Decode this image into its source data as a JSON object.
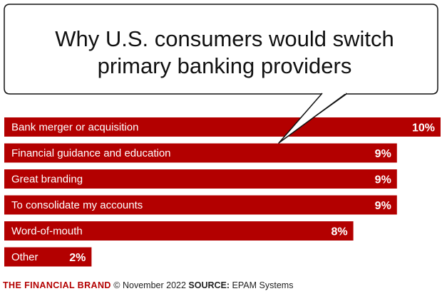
{
  "chart_data": {
    "type": "bar",
    "orientation": "horizontal",
    "title_lines": [
      "Why U.S. consumers would switch",
      "primary banking providers"
    ],
    "categories": [
      "Bank merger or acquisition",
      "Financial guidance and education",
      "Great branding",
      "To consolidate my accounts",
      "Word-of-mouth",
      "Other"
    ],
    "values": [
      10,
      9,
      9,
      9,
      8,
      2
    ],
    "value_labels": [
      "10%",
      "9%",
      "9%",
      "9%",
      "8%",
      "2%"
    ],
    "unit": "%",
    "bar_color": "#b30000",
    "xlim": [
      0,
      10
    ],
    "grid": false,
    "legend": "none"
  },
  "footer": {
    "brand": "THE FINANCIAL BRAND",
    "date_text": "© November 2022",
    "source_label": "SOURCE:",
    "source_value": "EPAM Systems"
  },
  "colors": {
    "accent": "#b30000",
    "text": "#111111"
  }
}
